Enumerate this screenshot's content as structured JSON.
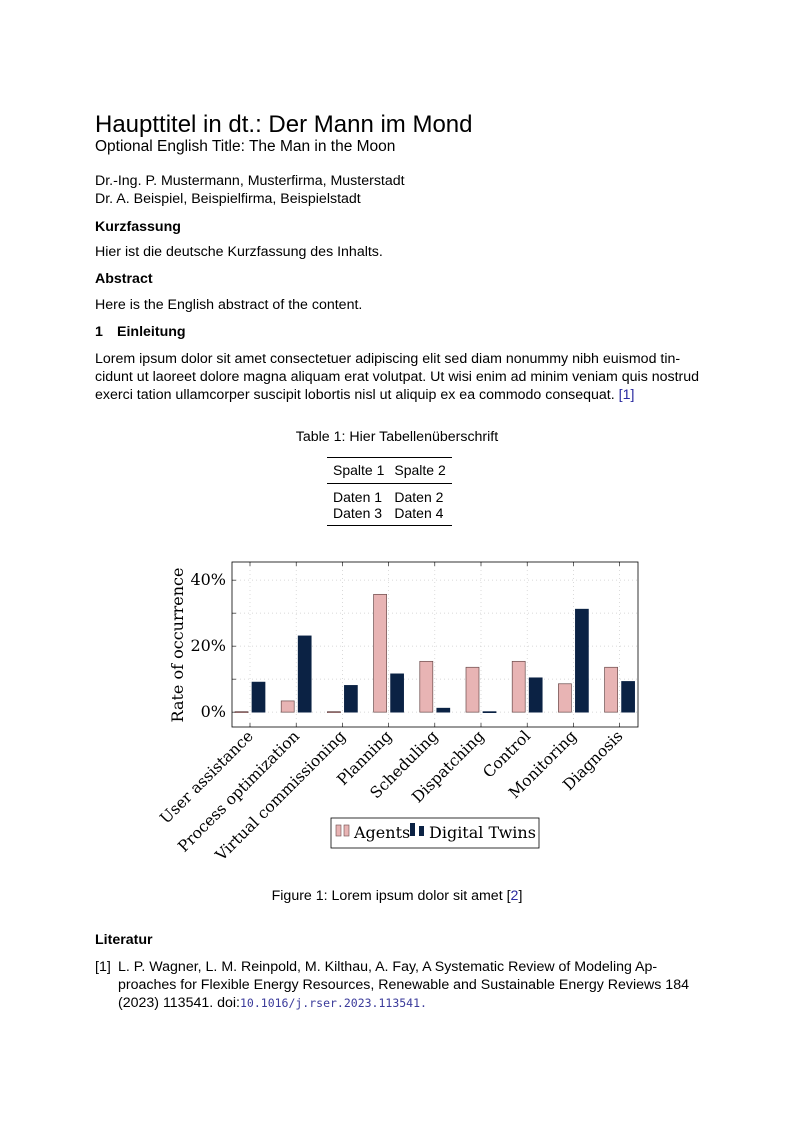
{
  "title": "Haupttitel in dt.: Der Mann im Mond",
  "subtitle": "Optional English Title: The Man in the Moon",
  "authors": [
    "Dr.-Ing. P. Mustermann, Musterfirma, Musterstadt",
    "Dr. A. Beispiel, Beispielfirma, Beispielstadt"
  ],
  "kurzfassung": {
    "heading": "Kurzfassung",
    "text": "Hier ist die deutsche Kurzfassung des Inhalts."
  },
  "abstract": {
    "heading": "Abstract",
    "text": "Here is the English abstract of the content."
  },
  "section1": {
    "number": "1",
    "heading": "Einleitung",
    "lines": [
      "Lorem ipsum dolor sit amet consectetuer adipiscing elit sed diam nonummy nibh euismod tin-",
      "cidunt ut laoreet dolore magna aliquam erat volutpat.  Ut wisi enim ad minim veniam quis nostrud",
      "exerci tation ullamcorper suscipit lobortis nisl ut aliquip ex ea commodo consequat. "
    ],
    "cite": "[1]"
  },
  "table": {
    "caption": "Table 1: Hier Tabellenüberschrift",
    "headers": [
      "Spalte 1",
      "Spalte 2"
    ],
    "rows": [
      [
        "Daten 1",
        "Daten 2"
      ],
      [
        "Daten 3",
        "Daten 4"
      ]
    ]
  },
  "figure": {
    "caption": "Figure 1: Lorem ipsum dolor sit amet ",
    "cite": "2"
  },
  "chart_data": {
    "type": "bar",
    "categories": [
      "User assistance",
      "Process optimization",
      "Virtual commissioning",
      "Planning",
      "Scheduling",
      "Dispatching",
      "Control",
      "Monitoring",
      "Diagnosis"
    ],
    "series": [
      {
        "name": "Agents",
        "values": [
          0,
          3.4,
          0,
          35.7,
          15.4,
          13.6,
          15.4,
          8.6,
          13.6
        ],
        "color": "#e8b4b4"
      },
      {
        "name": "Digital Twins",
        "values": [
          9.1,
          23.1,
          8.1,
          11.6,
          1.2,
          0,
          10.4,
          31.2,
          9.3
        ],
        "color": "#0b2244"
      }
    ],
    "ylabel": "Rate of occurrence",
    "yticks": [
      "0%",
      "20%",
      "40%"
    ],
    "ytick_values": [
      0,
      20,
      40
    ],
    "ylim": [
      -4.5,
      45.5
    ],
    "grid": true,
    "legend": "bottom"
  },
  "references": {
    "heading": "Literatur",
    "items": [
      {
        "label": "[1]",
        "lines": [
          "L. P. Wagner, L. M. Reinpold, M. Kilthau, A. Fay,  A Systematic Review of Modeling Ap-",
          "proaches for Flexible Energy Resources, Renewable and Sustainable Energy Reviews 184",
          "(2023) 113541. doi:"
        ],
        "doi": "10.1016/j.rser.2023.113541",
        "end": "."
      }
    ]
  }
}
